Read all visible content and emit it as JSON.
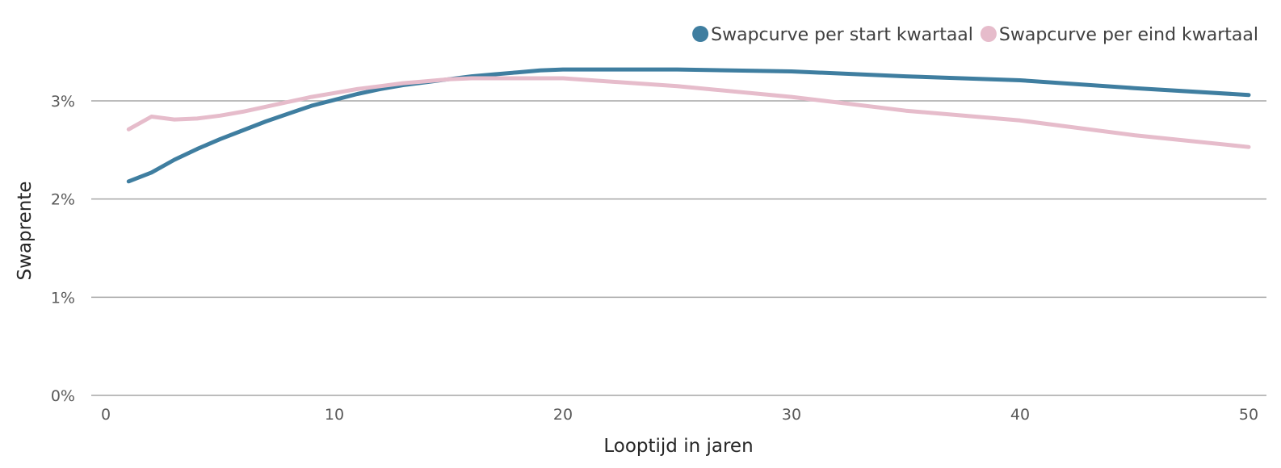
{
  "chart_data": {
    "type": "line",
    "title": "",
    "xlabel": "Looptijd in jaren",
    "ylabel": "Swaprente",
    "xlim": [
      0,
      50
    ],
    "ylim": [
      0,
      0.035
    ],
    "x_ticks": [
      {
        "value": 0,
        "label": "0"
      },
      {
        "value": 10,
        "label": "10"
      },
      {
        "value": 20,
        "label": "20"
      },
      {
        "value": 30,
        "label": "30"
      },
      {
        "value": 40,
        "label": "40"
      },
      {
        "value": 50,
        "label": "50"
      }
    ],
    "y_ticks": [
      {
        "value": 0,
        "label": "0%"
      },
      {
        "value": 0.01,
        "label": "1%"
      },
      {
        "value": 0.02,
        "label": "2%"
      },
      {
        "value": 0.03,
        "label": "3%"
      }
    ],
    "grid": "horizontal",
    "legend_position": "top-right",
    "series": [
      {
        "name": "Swapcurve per start kwartaal",
        "color": "#3f7ea0",
        "x": [
          1,
          2,
          3,
          4,
          5,
          6,
          7,
          8,
          9,
          10,
          11,
          12,
          13,
          14,
          15,
          16,
          17,
          18,
          19,
          20,
          25,
          30,
          35,
          40,
          45,
          50
        ],
        "y": [
          0.0218,
          0.0227,
          0.024,
          0.0251,
          0.0261,
          0.027,
          0.0279,
          0.0287,
          0.0295,
          0.0301,
          0.0307,
          0.0312,
          0.0316,
          0.0319,
          0.0322,
          0.0325,
          0.0327,
          0.0329,
          0.0331,
          0.0332,
          0.0332,
          0.033,
          0.0325,
          0.0321,
          0.0313,
          0.0306
        ]
      },
      {
        "name": "Swapcurve per eind kwartaal",
        "color": "#e6bccb",
        "x": [
          1,
          2,
          3,
          4,
          5,
          6,
          7,
          8,
          9,
          10,
          11,
          12,
          13,
          14,
          15,
          16,
          17,
          18,
          19,
          20,
          25,
          30,
          35,
          40,
          45,
          50
        ],
        "y": [
          0.0271,
          0.0284,
          0.0281,
          0.0282,
          0.0285,
          0.0289,
          0.0294,
          0.0299,
          0.0304,
          0.0308,
          0.0312,
          0.0315,
          0.0318,
          0.032,
          0.0322,
          0.0323,
          0.0323,
          0.0323,
          0.0323,
          0.0323,
          0.0315,
          0.0304,
          0.029,
          0.028,
          0.0265,
          0.0253
        ]
      }
    ]
  }
}
